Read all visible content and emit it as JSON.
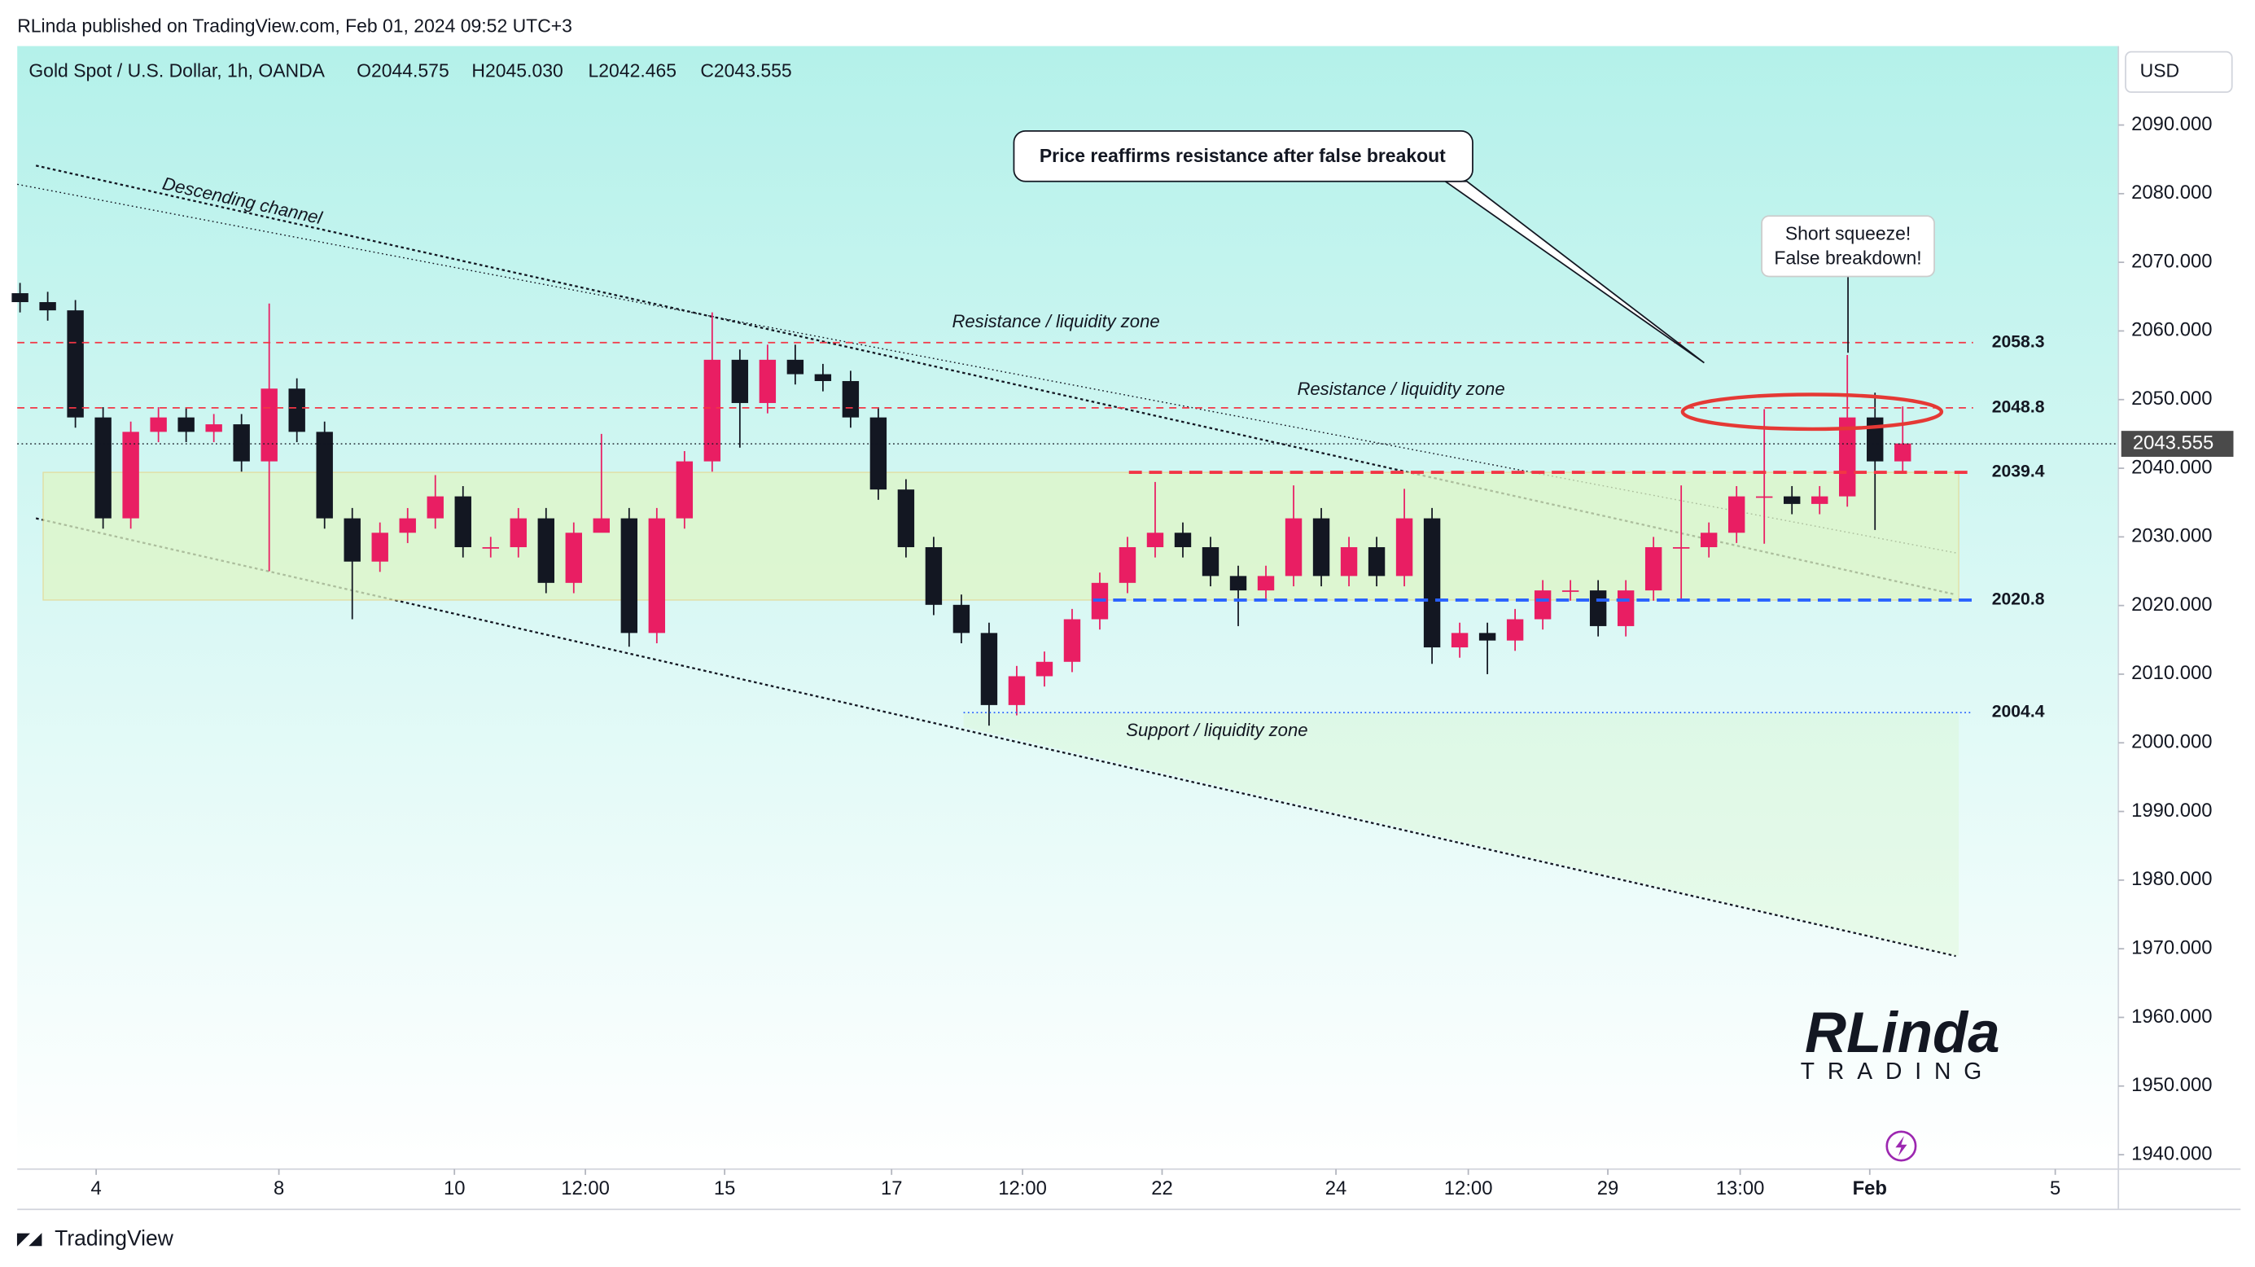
{
  "header": {
    "publisher": "RLinda published on TradingView.com, Feb 01, 2024 09:52 UTC+3",
    "footer": "TradingView"
  },
  "chart_data": {
    "type": "candlestick",
    "title": "Gold Spot / U.S. Dollar, 1h, OANDA",
    "ohlc_labels": [
      "O2044.575",
      "H2045.030",
      "L2042.465",
      "C2043.555"
    ],
    "currency": "USD",
    "open": [
      2065.5,
      2064.2,
      2063,
      2047.4,
      2032.7,
      2045.3,
      2047.4,
      2045.3,
      2046.4,
      2041,
      2051.6,
      2045.3,
      2032.7,
      2026.4,
      2030.6,
      2032.7,
      2035.9,
      2028.5,
      2028.5,
      2032.7,
      2023.3,
      2030.6,
      2032.7,
      2016,
      2032.7,
      2041,
      2055.8,
      2049.5,
      2055.8,
      2053.7,
      2052.7,
      2047.4,
      2036.9,
      2028.5,
      2020.1,
      2016,
      2005.5,
      2009.7,
      2011.8,
      2018,
      2023.3,
      2028.5,
      2030.6,
      2028.5,
      2024.3,
      2022.2,
      2024.3,
      2032.7,
      2024.3,
      2028.5,
      2024.3,
      2032.7,
      2013.9,
      2016,
      2014.9,
      2018,
      2022.2,
      2022.2,
      2017,
      2022.2,
      2028.5,
      2028.5,
      2030.6,
      2035.9,
      2035.9,
      2034.8,
      2035.9,
      2047.4,
      2041
    ],
    "high": [
      2067,
      2065.7,
      2064.5,
      2048.9,
      2046.8,
      2048.9,
      2048.9,
      2047.9,
      2047.9,
      2064,
      2053.1,
      2046.8,
      2034.2,
      2032.1,
      2034.2,
      2039,
      2037.4,
      2030,
      2034.2,
      2034.2,
      2032.1,
      2045,
      2034.2,
      2034.2,
      2042.5,
      2062.7,
      2057.3,
      2058,
      2058,
      2055.2,
      2054.2,
      2048.9,
      2038.4,
      2030,
      2021.6,
      2017.5,
      2011.2,
      2013.3,
      2019.5,
      2024.8,
      2030,
      2038,
      2032.1,
      2030,
      2025.8,
      2025.8,
      2037.5,
      2034.2,
      2030,
      2030,
      2037,
      2034.2,
      2017.5,
      2017.5,
      2019.5,
      2023.7,
      2023.7,
      2023.7,
      2023.7,
      2030,
      2037.5,
      2032.1,
      2037.4,
      2048.6,
      2037.4,
      2037.4,
      2056.5,
      2051,
      2049
    ],
    "low": [
      2062.7,
      2061.5,
      2045.9,
      2031.2,
      2031.2,
      2043.8,
      2043.8,
      2043.8,
      2039.5,
      2025,
      2043.8,
      2031.2,
      2018,
      2024.9,
      2029.1,
      2031.2,
      2027,
      2027,
      2027,
      2021.8,
      2021.8,
      2031.1,
      2014,
      2014.5,
      2031.2,
      2039.5,
      2043,
      2048,
      2052.2,
      2051.2,
      2045.9,
      2035.4,
      2027,
      2018.6,
      2014.5,
      2002.5,
      2004,
      2008.2,
      2010.3,
      2016.5,
      2021.8,
      2027,
      2027,
      2022.8,
      2017,
      2020.7,
      2022.8,
      2022.8,
      2022.8,
      2022.8,
      2022.8,
      2011.5,
      2012.4,
      2010,
      2013.4,
      2016.5,
      2020.7,
      2015.5,
      2015.5,
      2020.7,
      2021,
      2027,
      2029.1,
      2029,
      2033.3,
      2033.3,
      2034.4,
      2031,
      2039.5
    ],
    "close": [
      2064.2,
      2063,
      2047.4,
      2032.7,
      2045.3,
      2047.4,
      2045.3,
      2046.4,
      2041,
      2051.6,
      2045.3,
      2032.7,
      2026.4,
      2030.6,
      2032.7,
      2035.9,
      2028.5,
      2028.5,
      2032.7,
      2023.3,
      2030.6,
      2032.7,
      2016,
      2032.7,
      2041,
      2055.8,
      2049.5,
      2055.8,
      2053.7,
      2052.7,
      2047.4,
      2036.9,
      2028.5,
      2020.1,
      2016,
      2005.5,
      2009.7,
      2011.8,
      2018,
      2023.3,
      2028.5,
      2030.6,
      2028.5,
      2024.3,
      2022.2,
      2024.3,
      2032.7,
      2024.3,
      2028.5,
      2024.3,
      2032.7,
      2013.9,
      2016,
      2014.9,
      2018,
      2022.2,
      2022.2,
      2017,
      2022.2,
      2028.5,
      2028.5,
      2030.6,
      2035.9,
      2035.9,
      2034.8,
      2035.9,
      2047.4,
      2041,
      2043.6
    ],
    "up_color": "#e91e63",
    "down_color": "#131722",
    "ylim": [
      1937.9,
      2101.5
    ],
    "yticks": [
      {
        "value": 2090,
        "label": "2090.000"
      },
      {
        "value": 2080,
        "label": "2080.000"
      },
      {
        "value": 2070,
        "label": "2070.000"
      },
      {
        "value": 2060,
        "label": "2060.000"
      },
      {
        "value": 2050,
        "label": "2050.000"
      },
      {
        "value": 2040,
        "label": "2040.000"
      },
      {
        "value": 2030,
        "label": "2030.000"
      },
      {
        "value": 2020,
        "label": "2020.000"
      },
      {
        "value": 2010,
        "label": "2010.000"
      },
      {
        "value": 2000,
        "label": "2000.000"
      },
      {
        "value": 1990,
        "label": "1990.000"
      },
      {
        "value": 1980,
        "label": "1980.000"
      },
      {
        "value": 1970,
        "label": "1970.000"
      },
      {
        "value": 1960,
        "label": "1960.000"
      },
      {
        "value": 1950,
        "label": "1950.000"
      },
      {
        "value": 1940,
        "label": "1940.000"
      }
    ],
    "xlim": [
      -0.1,
      75.79
    ],
    "xticks": [
      {
        "value": 2.75,
        "label": "4"
      },
      {
        "value": 9.35,
        "label": "8"
      },
      {
        "value": 15.69,
        "label": "10"
      },
      {
        "value": 20.42,
        "label": "12:00"
      },
      {
        "value": 25.45,
        "label": "15"
      },
      {
        "value": 31.48,
        "label": "17"
      },
      {
        "value": 36.21,
        "label": "12:00"
      },
      {
        "value": 41.25,
        "label": "22"
      },
      {
        "value": 47.53,
        "label": "24"
      },
      {
        "value": 52.31,
        "label": "12:00"
      },
      {
        "value": 57.35,
        "label": "29"
      },
      {
        "value": 62.13,
        "label": "13:00"
      },
      {
        "value": 66.81,
        "label": "Feb"
      },
      {
        "value": 73.51,
        "label": "5"
      }
    ],
    "levels": [
      2058.3,
      2048.8,
      2039.4,
      2020.8,
      2004.4
    ],
    "last_price": 2043.555,
    "annotations": {
      "callout": "Price reaffirms resistance after false breakout",
      "squeeze": [
        "Short squeeze!",
        "False breakdown!"
      ],
      "channel": "Descending channel",
      "resistance_upper": "Resistance / liquidity zone",
      "resistance_lower": "Resistance / liquidity zone",
      "support": "Support / liquidity zone"
    }
  },
  "logo": {
    "brand": "RLinda",
    "sub": "TRADING"
  }
}
